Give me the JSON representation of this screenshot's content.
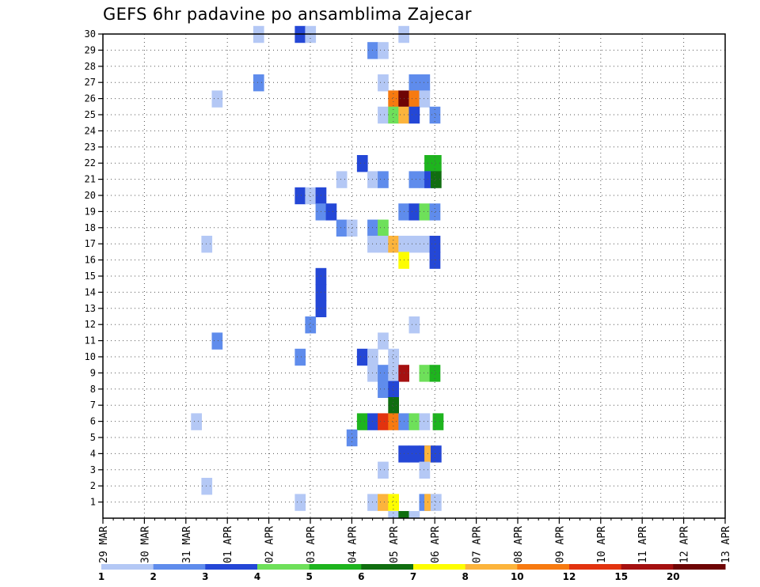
{
  "chart_data": {
    "type": "heatmap",
    "title": "GEFS 6hr padavine po ansamblima Zajecar",
    "xlabel": "",
    "ylabel": "",
    "x_tick_labels": [
      "29 MAR",
      "30 MAR",
      "31 MAR",
      "01 APR",
      "02 APR",
      "03 APR",
      "04 APR",
      "05 APR",
      "06 APR",
      "07 APR",
      "08 APR",
      "09 APR",
      "10 APR",
      "11 APR",
      "12 APR",
      "13 APR"
    ],
    "y_range": [
      0,
      30
    ],
    "y_ticks": [
      1,
      2,
      3,
      4,
      5,
      6,
      7,
      8,
      9,
      10,
      11,
      12,
      13,
      14,
      15,
      16,
      17,
      18,
      19,
      20,
      21,
      22,
      23,
      24,
      25,
      26,
      27,
      28,
      29,
      30
    ],
    "steps_per_day": 4,
    "grid": "dotted",
    "legend": {
      "placement": "bottom",
      "colors": [
        "#b4c8f5",
        "#5f8cec",
        "#2447d6",
        "#6ee05a",
        "#1eb41e",
        "#106e10",
        "#fdfd00",
        "#fcb43c",
        "#f77a10",
        "#e2330f",
        "#a51010",
        "#6e0505"
      ],
      "labels": [
        "1",
        "2",
        "3",
        "4",
        "5",
        "6",
        "7",
        "8",
        "10",
        "12",
        "15",
        "20"
      ]
    },
    "cells": [
      [
        14.5,
        30,
        1
      ],
      [
        18.5,
        30,
        3
      ],
      [
        19.5,
        30,
        1
      ],
      [
        28.5,
        30,
        1
      ],
      [
        25.5,
        29,
        2
      ],
      [
        26.5,
        29,
        1
      ],
      [
        14.5,
        27,
        2
      ],
      [
        26.5,
        27,
        1
      ],
      [
        29.5,
        27,
        2
      ],
      [
        30.5,
        27,
        2
      ],
      [
        10.5,
        26,
        1
      ],
      [
        27.5,
        26,
        10
      ],
      [
        28.5,
        26,
        20
      ],
      [
        29.5,
        26,
        10
      ],
      [
        30.5,
        26,
        1
      ],
      [
        26.5,
        25,
        1
      ],
      [
        27.5,
        25,
        4
      ],
      [
        28.5,
        25,
        8
      ],
      [
        29.5,
        25,
        3
      ],
      [
        31.5,
        25,
        2
      ],
      [
        24.5,
        22,
        3
      ],
      [
        31,
        22,
        5
      ],
      [
        31.6,
        22,
        5
      ],
      [
        22.5,
        21,
        1
      ],
      [
        25.5,
        21,
        1
      ],
      [
        26.5,
        21,
        2
      ],
      [
        29.5,
        21,
        2
      ],
      [
        30.5,
        21,
        2
      ],
      [
        31,
        21,
        3
      ],
      [
        31.6,
        21,
        6
      ],
      [
        18.5,
        20,
        3
      ],
      [
        19.5,
        20,
        1
      ],
      [
        20.5,
        20,
        3
      ],
      [
        20.5,
        19,
        2
      ],
      [
        21.5,
        19,
        3
      ],
      [
        28.5,
        19,
        2
      ],
      [
        29.5,
        19,
        3
      ],
      [
        30.5,
        19,
        4
      ],
      [
        31.5,
        19,
        2
      ],
      [
        22.5,
        18,
        2
      ],
      [
        23.5,
        18,
        1
      ],
      [
        25.5,
        18,
        2
      ],
      [
        26.5,
        18,
        4
      ],
      [
        9.5,
        17,
        1
      ],
      [
        25.5,
        17,
        1
      ],
      [
        26.5,
        17,
        1
      ],
      [
        27.5,
        17,
        8
      ],
      [
        28.5,
        17,
        1
      ],
      [
        29.5,
        17,
        1
      ],
      [
        30.5,
        17,
        1
      ],
      [
        31.5,
        17,
        3
      ],
      [
        28.5,
        16,
        7
      ],
      [
        31.5,
        16,
        3
      ],
      [
        20.5,
        15,
        3
      ],
      [
        20.5,
        14,
        3
      ],
      [
        20.5,
        13,
        3
      ],
      [
        19.5,
        12,
        2
      ],
      [
        29.5,
        12,
        1
      ],
      [
        10.5,
        11,
        2
      ],
      [
        26.5,
        11,
        1
      ],
      [
        18.5,
        10,
        2
      ],
      [
        24.5,
        10,
        3
      ],
      [
        25.5,
        10,
        1
      ],
      [
        27.5,
        10,
        1
      ],
      [
        25.5,
        9,
        1
      ],
      [
        26.5,
        9,
        2
      ],
      [
        27.5,
        9,
        1
      ],
      [
        28.5,
        9,
        15
      ],
      [
        30.5,
        9,
        4
      ],
      [
        31.5,
        9,
        5
      ],
      [
        26.5,
        8,
        2
      ],
      [
        27.5,
        8,
        3
      ],
      [
        27.5,
        7,
        6
      ],
      [
        8.5,
        6,
        1
      ],
      [
        24.5,
        6,
        5
      ],
      [
        25.5,
        6,
        3
      ],
      [
        26.5,
        6,
        12
      ],
      [
        27.5,
        6,
        10
      ],
      [
        28.5,
        6,
        2
      ],
      [
        29.5,
        6,
        4
      ],
      [
        30.5,
        6,
        1
      ],
      [
        31.8,
        6,
        5
      ],
      [
        23.5,
        5,
        2
      ],
      [
        28.5,
        4,
        3
      ],
      [
        29.5,
        4,
        3
      ],
      [
        30.5,
        4,
        3
      ],
      [
        31,
        4,
        8
      ],
      [
        31.6,
        4,
        3
      ],
      [
        26.5,
        3,
        1
      ],
      [
        30.5,
        3,
        1
      ],
      [
        9.5,
        2,
        1
      ],
      [
        18.5,
        1,
        1
      ],
      [
        25.5,
        1,
        1
      ],
      [
        26.5,
        1,
        8
      ],
      [
        27.5,
        1,
        7
      ],
      [
        30.5,
        1,
        2
      ],
      [
        31,
        1,
        8
      ],
      [
        31.6,
        1,
        1
      ],
      [
        27.5,
        0,
        1
      ],
      [
        28.5,
        0,
        6
      ],
      [
        29.5,
        0,
        1
      ]
    ]
  }
}
